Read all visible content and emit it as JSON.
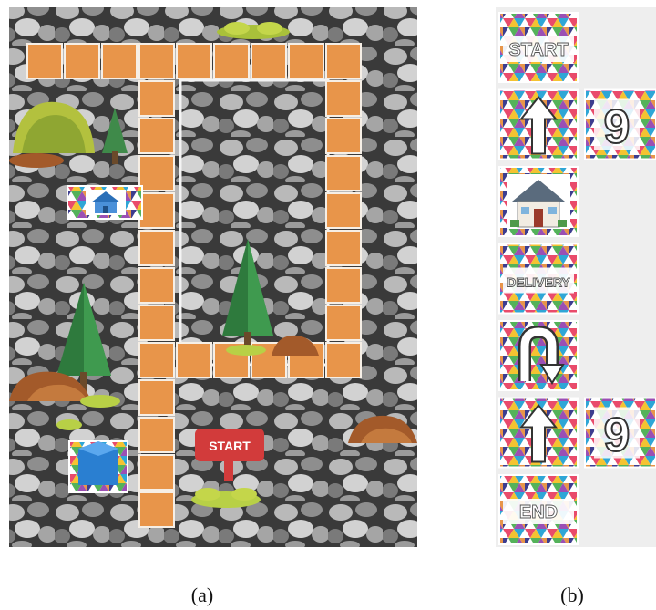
{
  "figure": {
    "panel_a": {
      "caption": "(a)",
      "start_sign": "START",
      "path_color": "#e8954a",
      "rock_color": "#8a8a8a"
    },
    "panel_b": {
      "caption": "(b)",
      "cards": [
        {
          "kind": "text",
          "label": "START",
          "icon": "start-card"
        },
        {
          "kind": "arrow",
          "label": "",
          "icon": "arrow-up-icon",
          "param": "9"
        },
        {
          "kind": "house",
          "label": "",
          "icon": "house-icon"
        },
        {
          "kind": "text",
          "label": "DELIVERY",
          "icon": "delivery-card"
        },
        {
          "kind": "uturn",
          "label": "",
          "icon": "u-turn-icon"
        },
        {
          "kind": "arrow",
          "label": "",
          "icon": "arrow-up-icon",
          "param": "9"
        },
        {
          "kind": "text",
          "label": "END",
          "icon": "end-card"
        }
      ]
    }
  }
}
